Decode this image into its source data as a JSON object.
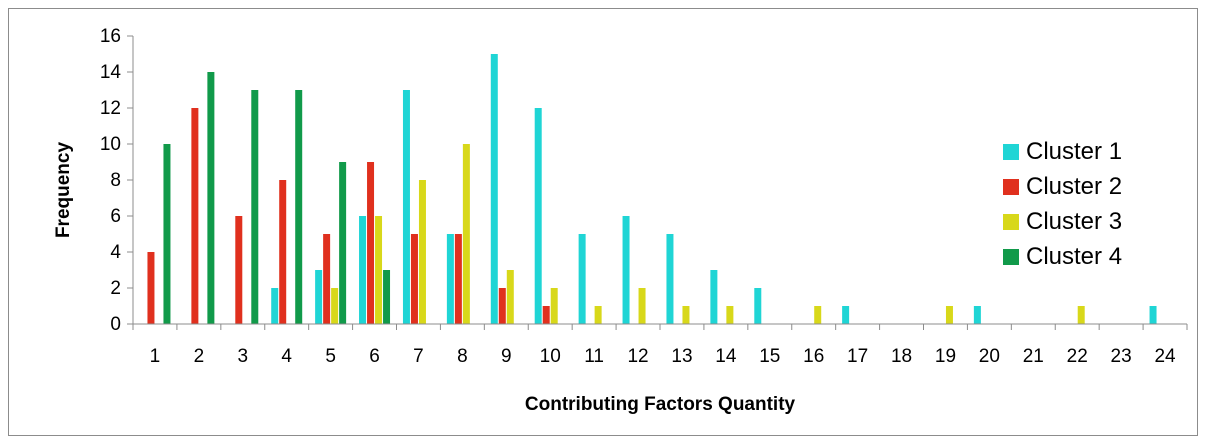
{
  "chart_data": {
    "type": "bar",
    "title": "",
    "xlabel": "Contributing Factors Quantity",
    "ylabel": "Frequency",
    "ylim": [
      0,
      16
    ],
    "yticks": [
      "0",
      "2",
      "4",
      "6",
      "8",
      "10",
      "12",
      "14",
      "16"
    ],
    "categories": [
      "1",
      "2",
      "3",
      "4",
      "5",
      "6",
      "7",
      "8",
      "9",
      "10",
      "11",
      "12",
      "13",
      "14",
      "15",
      "16",
      "17",
      "18",
      "19",
      "20",
      "21",
      "22",
      "23",
      "24"
    ],
    "legend_position": "right",
    "grid": false,
    "series": [
      {
        "name": "Cluster 1",
        "color": "#1fd5d5",
        "values": [
          0,
          0,
          0,
          2,
          3,
          6,
          13,
          5,
          15,
          12,
          5,
          6,
          5,
          3,
          2,
          0,
          1,
          0,
          0,
          1,
          0,
          0,
          0,
          1
        ]
      },
      {
        "name": "Cluster 2",
        "color": "#e0301e",
        "values": [
          4,
          12,
          6,
          8,
          5,
          9,
          5,
          5,
          2,
          1,
          0,
          0,
          0,
          0,
          0,
          0,
          0,
          0,
          0,
          0,
          0,
          0,
          0,
          0
        ]
      },
      {
        "name": "Cluster 3",
        "color": "#d8d81a",
        "values": [
          0,
          0,
          0,
          0,
          2,
          6,
          8,
          10,
          3,
          2,
          1,
          2,
          1,
          1,
          0,
          1,
          0,
          0,
          1,
          0,
          0,
          1,
          0,
          0
        ]
      },
      {
        "name": "Cluster 4",
        "color": "#119a4a",
        "values": [
          10,
          14,
          13,
          13,
          9,
          3,
          0,
          0,
          0,
          0,
          0,
          0,
          0,
          0,
          0,
          0,
          0,
          0,
          0,
          0,
          0,
          0,
          0,
          0
        ]
      }
    ]
  }
}
